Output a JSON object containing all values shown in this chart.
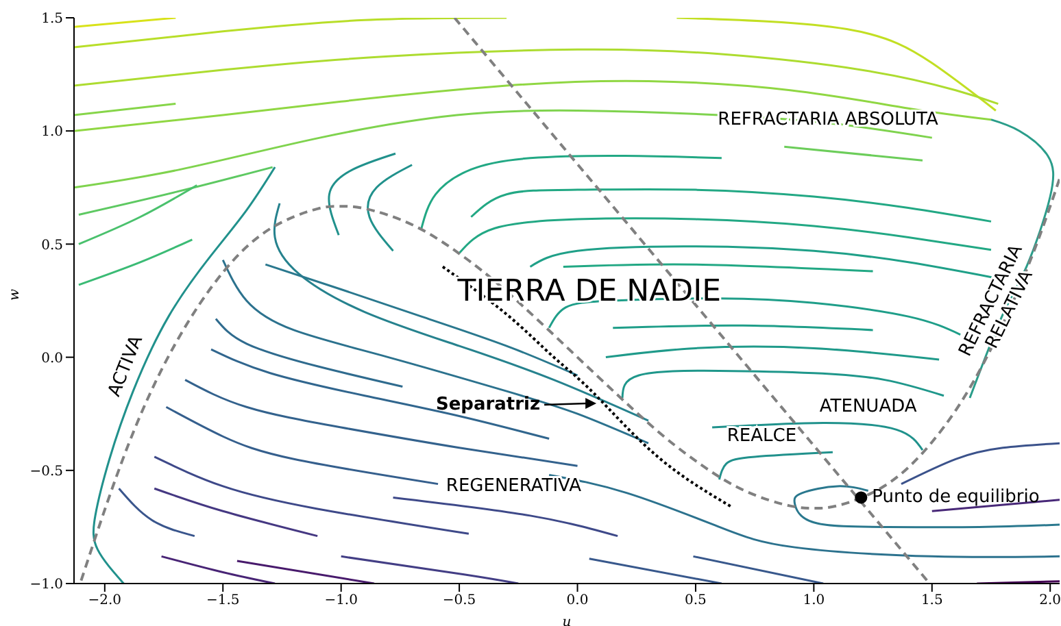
{
  "chart_data": {
    "type": "line",
    "xlabel": "u",
    "ylabel": "w",
    "xlim": [
      -2.13,
      2.04
    ],
    "ylim": [
      -1,
      1.5
    ],
    "xticks": [
      {
        "value": -2,
        "label": "−2.0"
      },
      {
        "value": -1.5,
        "label": "−1.5"
      },
      {
        "value": -1,
        "label": "−1.0"
      },
      {
        "value": -0.5,
        "label": "−0.5"
      },
      {
        "value": 0,
        "label": "0.0"
      },
      {
        "value": 0.5,
        "label": "0.5"
      },
      {
        "value": 1,
        "label": "1.0"
      },
      {
        "value": 1.5,
        "label": "1.5"
      },
      {
        "value": 2,
        "label": "2.0"
      }
    ],
    "yticks": [
      {
        "value": -1,
        "label": "−1.0"
      },
      {
        "value": -0.5,
        "label": "−0.5"
      },
      {
        "value": 0,
        "label": "0.0"
      },
      {
        "value": 0.5,
        "label": "0.5"
      },
      {
        "value": 1,
        "label": "1.0"
      },
      {
        "value": 1.5,
        "label": "1.5"
      }
    ],
    "marker": "none",
    "series": [
      {
        "color": "#d8e219",
        "x": [
          -2.13,
          -1.7
        ],
        "values": [
          1.46,
          1.5
        ]
      },
      {
        "color": "#b8de29",
        "x": [
          -2.13,
          -1.5,
          -0.9,
          -0.3
        ],
        "values": [
          1.37,
          1.44,
          1.49,
          1.5
        ]
      },
      {
        "color": "#c2df23",
        "x": [
          0.42,
          1.14,
          1.5,
          1.77
        ],
        "values": [
          1.5,
          1.45,
          1.3,
          1.09
        ]
      },
      {
        "color": "#addc30",
        "x": [
          -2.13,
          -1.5,
          -0.8,
          0,
          0.6,
          1.2,
          1.6,
          1.78
        ],
        "values": [
          1.2,
          1.27,
          1.33,
          1.36,
          1.34,
          1.27,
          1.18,
          1.12
        ]
      },
      {
        "color": "#86d549",
        "x": [
          -2.13,
          -1.7
        ],
        "values": [
          1.07,
          1.12
        ]
      },
      {
        "color": "#90d743",
        "x": [
          -2.13,
          -1.5,
          -1,
          -0.3,
          0.3,
          0.9,
          1.4,
          1.75
        ],
        "values": [
          1.0,
          1.07,
          1.13,
          1.2,
          1.22,
          1.18,
          1.1,
          1.05
        ]
      },
      {
        "color": "#2a9d8a",
        "x": [
          1.75,
          1.87,
          1.99,
          2.0,
          1.9,
          1.8,
          1.66
        ],
        "values": [
          1.05,
          1.0,
          0.89,
          0.71,
          0.4,
          0.19,
          -0.18
        ]
      },
      {
        "color": "#7fd34e",
        "x": [
          -2.13,
          -1.68,
          -1.09,
          -0.51,
          0,
          0.6,
          1.1,
          1.5
        ],
        "values": [
          0.75,
          0.83,
          0.97,
          1.07,
          1.09,
          1.07,
          1.03,
          0.97
        ]
      },
      {
        "color": "#6ccd5a",
        "x": [
          0.875,
          1.46
        ],
        "values": [
          0.93,
          0.87
        ]
      },
      {
        "color": "#5ec962",
        "x": [
          -2.11,
          -1.7,
          -1.29
        ],
        "values": [
          0.63,
          0.73,
          0.84
        ]
      },
      {
        "color": "#4ac16d",
        "x": [
          -2.11,
          -1.85,
          -1.61
        ],
        "values": [
          0.5,
          0.62,
          0.76
        ]
      },
      {
        "color": "#3bbb75",
        "x": [
          -2.11,
          -1.85,
          -1.63
        ],
        "values": [
          0.32,
          0.42,
          0.52
        ]
      },
      {
        "color": "#21918c",
        "x": [
          -1.92,
          -2.03,
          -2.04,
          -1.98,
          -1.88,
          -1.73,
          -1.55,
          -1.4,
          -1.28
        ],
        "values": [
          -1.0,
          -0.85,
          -0.7,
          -0.45,
          -0.15,
          0.18,
          0.45,
          0.65,
          0.84
        ]
      },
      {
        "color": "#21918c",
        "x": [
          -1.01,
          -1.05,
          -0.95,
          -0.77
        ],
        "values": [
          0.54,
          0.72,
          0.83,
          0.9
        ]
      },
      {
        "color": "#21918c",
        "x": [
          -0.78,
          -0.88,
          -0.85,
          -0.7
        ],
        "values": [
          0.47,
          0.62,
          0.75,
          0.85
        ]
      },
      {
        "color": "#22a884",
        "x": [
          -0.66,
          -0.6,
          -0.45,
          -0.2,
          0.2,
          0.61
        ],
        "values": [
          0.57,
          0.72,
          0.83,
          0.88,
          0.89,
          0.88
        ]
      },
      {
        "color": "#22a884",
        "x": [
          -0.45,
          -0.3,
          0,
          0.5,
          1.0,
          1.4,
          1.75
        ],
        "values": [
          0.62,
          0.72,
          0.74,
          0.74,
          0.71,
          0.66,
          0.6
        ]
      },
      {
        "color": "#22a884",
        "x": [
          -0.5,
          -0.35,
          0,
          0.5,
          1.0,
          1.4,
          1.75
        ],
        "values": [
          0.46,
          0.57,
          0.61,
          0.61,
          0.58,
          0.53,
          0.475
        ]
      },
      {
        "color": "#1fa088",
        "x": [
          -0.2,
          0,
          0.5,
          1.0,
          1.4,
          1.77
        ],
        "values": [
          0.4,
          0.47,
          0.49,
          0.47,
          0.42,
          0.35
        ]
      },
      {
        "color": "#22a884",
        "x": [
          -0.06,
          0.5,
          1.25
        ],
        "values": [
          0.4,
          0.41,
          0.38
        ]
      },
      {
        "color": "#1f9e89",
        "x": [
          -0.12,
          -0.05,
          0.15,
          0.6,
          1.0,
          1.4,
          1.62
        ],
        "values": [
          0.13,
          0.22,
          0.25,
          0.26,
          0.24,
          0.18,
          0.1
        ]
      },
      {
        "color": "#1f9e89",
        "x": [
          0.15,
          0.7,
          1.25
        ],
        "values": [
          0.13,
          0.14,
          0.12
        ]
      },
      {
        "color": "#1f9a8a",
        "x": [
          0.12,
          0.5,
          1.0,
          1.53
        ],
        "values": [
          0.0,
          0.04,
          0.04,
          -0.01
        ]
      },
      {
        "color": "#1f978b",
        "x": [
          0.19,
          0.26,
          0.6,
          1.0,
          1.3,
          1.55
        ],
        "values": [
          -0.18,
          -0.08,
          -0.06,
          -0.07,
          -0.1,
          -0.17
        ]
      },
      {
        "color": "#20928c",
        "x": [
          0.57,
          1.04,
          1.35,
          1.46
        ],
        "values": [
          -0.31,
          -0.29,
          -0.32,
          -0.41
        ]
      },
      {
        "color": "#21918c",
        "x": [
          0.6,
          0.63,
          0.75,
          1.08
        ],
        "values": [
          -0.54,
          -0.47,
          -0.44,
          -0.42
        ]
      },
      {
        "color": "#2a788e",
        "x": [
          1.23,
          1.1,
          0.95,
          0.92,
          1.0,
          1.3,
          1.7,
          2.04
        ],
        "values": [
          -0.59,
          -0.57,
          -0.6,
          -0.65,
          -0.73,
          -0.75,
          -0.75,
          -0.74
        ]
      },
      {
        "color": "#3b528b",
        "x": [
          1.37,
          1.6,
          1.8,
          2.04
        ],
        "values": [
          -0.56,
          -0.45,
          -0.4,
          -0.38
        ]
      },
      {
        "color": "#482878",
        "x": [
          1.5,
          2.04
        ],
        "values": [
          -0.68,
          -0.63
        ]
      },
      {
        "color": "#2c728e",
        "x": [
          -0.12,
          0.21,
          0.6,
          0.92,
          1.5,
          2.04
        ],
        "values": [
          -0.52,
          -0.6,
          -0.75,
          -0.84,
          -0.88,
          -0.88
        ]
      },
      {
        "color": "#26828e",
        "x": [
          -1.26,
          -1.28,
          -1.18,
          -0.9,
          -0.5,
          -0.1,
          0.3
        ],
        "values": [
          0.68,
          0.53,
          0.37,
          0.2,
          0.05,
          -0.1,
          -0.28
        ]
      },
      {
        "color": "#2a788e",
        "x": [
          -1.32,
          -1.0,
          -0.66,
          -0.3,
          0.0
        ],
        "values": [
          0.41,
          0.3,
          0.18,
          0.05,
          -0.08
        ]
      },
      {
        "color": "#2c728e",
        "x": [
          -1.5,
          -1.4,
          -1.2,
          -0.8,
          -0.3,
          0.0,
          0.3
        ],
        "values": [
          0.43,
          0.25,
          0.12,
          0.0,
          -0.15,
          -0.25,
          -0.38
        ]
      },
      {
        "color": "#2f6b8e",
        "x": [
          -1.53,
          -1.4,
          -1.1,
          -0.74
        ],
        "values": [
          0.17,
          0.06,
          -0.04,
          -0.13
        ]
      },
      {
        "color": "#31668e",
        "x": [
          -1.55,
          -1.3,
          -0.9,
          -0.5,
          -0.12
        ],
        "values": [
          0.035,
          -0.07,
          -0.17,
          -0.26,
          -0.36
        ]
      },
      {
        "color": "#33628d",
        "x": [
          -1.66,
          -1.4,
          -1.0,
          -0.5,
          0.0
        ],
        "values": [
          -0.1,
          -0.22,
          -0.31,
          -0.4,
          -0.48
        ]
      },
      {
        "color": "#355f8d",
        "x": [
          -1.74,
          -1.5,
          -1.2,
          -0.59
        ],
        "values": [
          -0.22,
          -0.35,
          -0.45,
          -0.56
        ]
      },
      {
        "color": "#3e4989",
        "x": [
          -1.79,
          -1.5,
          -1.1,
          -0.46
        ],
        "values": [
          -0.44,
          -0.57,
          -0.67,
          -0.78
        ]
      },
      {
        "color": "#453882",
        "x": [
          -1.79,
          -1.5,
          -1.1
        ],
        "values": [
          -0.58,
          -0.68,
          -0.79
        ]
      },
      {
        "color": "#39558c",
        "x": [
          -1.94,
          -1.8,
          -1.62
        ],
        "values": [
          -0.58,
          -0.72,
          -0.79
        ]
      },
      {
        "color": "#482475",
        "x": [
          -1.76,
          -1.5,
          -1.28
        ],
        "values": [
          -0.88,
          -0.95,
          -1.0
        ]
      },
      {
        "color": "#481a6c",
        "x": [
          -1.44,
          -0.86
        ],
        "values": [
          -0.9,
          -1.0
        ]
      },
      {
        "color": "#433e85",
        "x": [
          -1.0,
          -0.48,
          -0.25
        ],
        "values": [
          -0.88,
          -0.96,
          -1.0
        ]
      },
      {
        "color": "#3e4989",
        "x": [
          -0.78,
          -0.2,
          0.17
        ],
        "values": [
          -0.62,
          -0.7,
          -0.79
        ]
      },
      {
        "color": "#38588c",
        "x": [
          0.05,
          0.61
        ],
        "values": [
          -0.89,
          -1.0
        ]
      },
      {
        "color": "#38588c",
        "x": [
          0.49,
          1.04
        ],
        "values": [
          -0.88,
          -1.0
        ]
      },
      {
        "color": "#440154",
        "x": [
          1.69,
          2.04
        ],
        "values": [
          -1.0,
          -0.99
        ]
      },
      {
        "color": "#808080",
        "line_style": "dashed",
        "x": [
          -2.1,
          -1.9,
          -1.7,
          -1.5,
          -1.3,
          -1.1,
          -1.0,
          -0.9,
          -0.7,
          -0.5,
          -0.3,
          0,
          0.3,
          0.5,
          0.7,
          0.9,
          1.0,
          1.1,
          1.3,
          1.5,
          1.7,
          1.9,
          2.04
        ],
        "values": [
          -0.987,
          -0.386,
          0.062,
          0.375,
          0.568,
          0.656,
          0.667,
          0.657,
          0.586,
          0.458,
          0.291,
          0,
          -0.291,
          -0.458,
          -0.586,
          -0.657,
          -0.667,
          -0.656,
          -0.568,
          -0.375,
          -0.062,
          0.386,
          0.79
        ]
      },
      {
        "color": "#808080",
        "line_style": "dashed",
        "x": [
          -0.52,
          1.49
        ],
        "values": [
          1.5,
          -1.0
        ]
      },
      {
        "color": "#000000",
        "line_style": "dotted",
        "x": [
          -0.57,
          -0.3,
          -0.1,
          0.07,
          0.34,
          0.65
        ],
        "values": [
          0.4,
          0.19,
          0.0,
          -0.16,
          -0.44,
          -0.66
        ]
      },
      {
        "type": "scatter",
        "color": "#000000",
        "marker": "circle",
        "x": [
          1.2
        ],
        "values": [
          -0.62
        ]
      }
    ],
    "annotations": [
      "TIERRA DE NADIE",
      "REFRACTARIA ABSOLUTA",
      "ACTIVA",
      "REFRACTARIA\nRELATIVA",
      "ATENUADA",
      "REALCE",
      "REGENERATIVA",
      "Separatriz",
      {
        "text": "Punto de equilibrio",
        "x": 1.2,
        "y": -0.62
      }
    ]
  }
}
